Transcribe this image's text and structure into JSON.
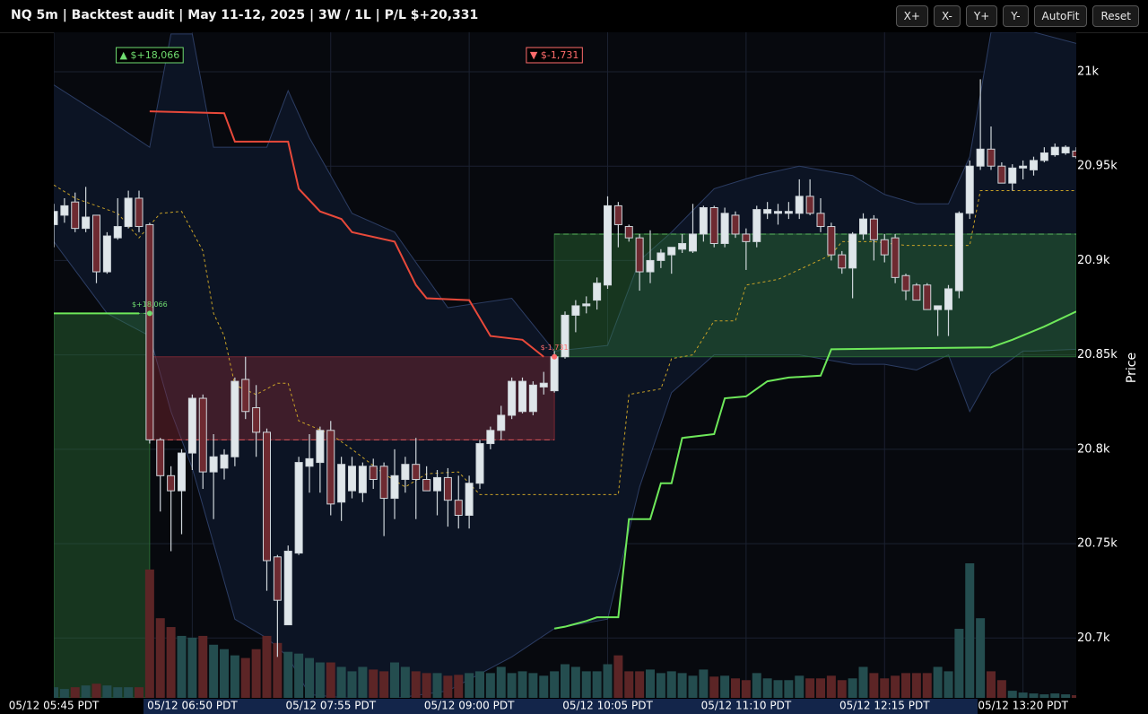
{
  "header": {
    "title": "NQ 5m | Backtest audit | May 11-12, 2025 | 3W / 1L | P/L $+20,331"
  },
  "toolbar": {
    "buttons": [
      "X+",
      "X-",
      "Y+",
      "Y-",
      "AutoFit",
      "Reset"
    ]
  },
  "chart_data": {
    "type": "candlestick",
    "y_axis_label": "Price",
    "xlim": [
      0,
      96
    ],
    "ylim": [
      20668.3,
      21020.9
    ],
    "xticks": [
      {
        "value": 0,
        "label": "05/12 05:45 PDT"
      },
      {
        "value": 13,
        "label": "05/12 06:50 PDT"
      },
      {
        "value": 26,
        "label": "05/12 07:55 PDT"
      },
      {
        "value": 39,
        "label": "05/12 09:00 PDT"
      },
      {
        "value": 52,
        "label": "05/12 10:05 PDT"
      },
      {
        "value": 65,
        "label": "05/12 11:10 PDT"
      },
      {
        "value": 78,
        "label": "05/12 12:15 PDT"
      },
      {
        "value": 91,
        "label": "05/12 13:20 PDT"
      }
    ],
    "yticks": [
      {
        "value": 21000,
        "label": "21k"
      },
      {
        "value": 20950,
        "label": "20.95k"
      },
      {
        "value": 20900,
        "label": "20.9k"
      },
      {
        "value": 20850,
        "label": "20.85k"
      },
      {
        "value": 20800,
        "label": "20.8k"
      },
      {
        "value": 20750,
        "label": "20.75k"
      },
      {
        "value": 20700,
        "label": "20.7k"
      }
    ],
    "grid": true,
    "up_color": "#dfe6ea",
    "down_color": "#6e2a31",
    "volume_up_color": "#244d4f",
    "volume_down_color": "#5c2526",
    "open": [
      20919,
      20924,
      20931,
      20917,
      20924,
      20894,
      20912,
      20918,
      20933,
      20919,
      20805,
      20786,
      20778,
      20798,
      20827,
      20788,
      20790,
      20796,
      20837,
      20822,
      20809,
      20743,
      20707,
      20745,
      20791,
      20793,
      20810,
      20772,
      20778,
      20777,
      20791,
      20791,
      20774,
      20784,
      20792,
      20784,
      20778,
      20785,
      20773,
      20765,
      20782,
      20803,
      20810,
      20818,
      20820,
      20820,
      20833,
      20831,
      20849,
      20871,
      20876,
      20879,
      20887,
      20929,
      20918,
      20912,
      20894,
      20900,
      20903,
      20906,
      20905,
      20914,
      20928,
      20909,
      20924,
      20914,
      20910,
      20925,
      20925,
      20925,
      20925,
      20934,
      20925,
      20918,
      20903,
      20896,
      20914,
      20922,
      20911,
      20912,
      20892,
      20887,
      20887,
      20874,
      20874,
      20884,
      20925,
      20950,
      20959,
      20950,
      20941,
      20949,
      20948,
      20953,
      20956,
      20957,
      20958
    ],
    "high": [
      20930,
      20933,
      20936,
      20939,
      20924,
      20915,
      20933,
      20937,
      20937,
      20920,
      20806,
      20791,
      20800,
      20829,
      20829,
      20808,
      20800,
      20838,
      20849,
      20834,
      20811,
      20744,
      20749,
      20796,
      20808,
      20812,
      20815,
      20796,
      20796,
      20793,
      20795,
      20793,
      20800,
      20796,
      20806,
      20791,
      20789,
      20790,
      20786,
      20786,
      20805,
      20812,
      20823,
      20838,
      20838,
      20836,
      20841,
      20852,
      20873,
      20879,
      20881,
      20891,
      20934,
      20931,
      20919,
      20914,
      20916,
      20906,
      20907,
      20914,
      20930,
      20929,
      20929,
      20928,
      20926,
      20917,
      20929,
      20931,
      20930,
      20931,
      20943,
      20943,
      20933,
      20920,
      20905,
      20915,
      20925,
      20924,
      20914,
      20914,
      20893,
      20888,
      20888,
      20876,
      20887,
      20926,
      20953,
      20996,
      20971,
      20952,
      20951,
      20953,
      20955,
      20960,
      20962,
      20961,
      20960
    ],
    "low": [
      20907,
      20920,
      20915,
      20915,
      20888,
      20893,
      20911,
      20917,
      20915,
      20803,
      20767,
      20746,
      20755,
      20789,
      20779,
      20763,
      20784,
      20791,
      20816,
      20796,
      20725,
      20690,
      20707,
      20744,
      20777,
      20777,
      20765,
      20762,
      20774,
      20772,
      20779,
      20754,
      20763,
      20777,
      20763,
      20778,
      20765,
      20759,
      20758,
      20758,
      20779,
      20800,
      20805,
      20816,
      20819,
      20818,
      20829,
      20830,
      20848,
      20862,
      20872,
      20874,
      20885,
      20907,
      20910,
      20884,
      20888,
      20896,
      20893,
      20904,
      20904,
      20910,
      20907,
      20907,
      20912,
      20895,
      20907,
      20922,
      20919,
      20922,
      20922,
      20924,
      20915,
      20900,
      20893,
      20880,
      20911,
      20900,
      20899,
      20888,
      20879,
      20879,
      20874,
      20860,
      20860,
      20880,
      20922,
      20948,
      20948,
      20941,
      20937,
      20943,
      20945,
      20952,
      20955,
      20956,
      20954
    ],
    "close": [
      20926,
      20929,
      20917,
      20923,
      20894,
      20913,
      20918,
      20933,
      20918,
      20805,
      20786,
      20778,
      20798,
      20827,
      20788,
      20796,
      20797,
      20836,
      20820,
      20809,
      20741,
      20720,
      20746,
      20793,
      20795,
      20810,
      20771,
      20792,
      20791,
      20791,
      20784,
      20774,
      20786,
      20792,
      20784,
      20778,
      20785,
      20773,
      20765,
      20782,
      20803,
      20810,
      20818,
      20836,
      20836,
      20834,
      20835,
      20849,
      20871,
      20876,
      20877,
      20888,
      20929,
      20919,
      20912,
      20894,
      20900,
      20904,
      20907,
      20909,
      20914,
      20928,
      20909,
      20925,
      20914,
      20910,
      20927,
      20927,
      20926,
      20926,
      20934,
      20925,
      20918,
      20903,
      20896,
      20914,
      20922,
      20911,
      20903,
      20891,
      20884,
      20879,
      20874,
      20876,
      20885,
      20925,
      20950,
      20959,
      20950,
      20941,
      20949,
      20950,
      20953,
      20957,
      20960,
      20960,
      20955
    ],
    "volume": [
      12,
      10,
      12,
      14,
      16,
      14,
      12,
      12,
      12,
      145,
      90,
      80,
      70,
      68,
      70,
      60,
      55,
      48,
      45,
      55,
      70,
      62,
      52,
      50,
      45,
      40,
      40,
      35,
      30,
      35,
      32,
      30,
      40,
      35,
      30,
      28,
      28,
      25,
      26,
      28,
      30,
      28,
      35,
      28,
      30,
      28,
      25,
      30,
      38,
      35,
      30,
      30,
      38,
      48,
      30,
      30,
      32,
      28,
      30,
      28,
      25,
      32,
      24,
      25,
      22,
      20,
      28,
      22,
      20,
      20,
      25,
      22,
      22,
      25,
      20,
      22,
      35,
      28,
      22,
      25,
      28,
      28,
      28,
      35,
      30,
      78,
      152,
      90,
      30,
      20,
      8,
      6,
      5,
      4,
      5,
      4,
      3
    ],
    "band": {
      "color": "#2c3d63",
      "fill": "#0c1424",
      "x": [
        0,
        5,
        9,
        11,
        13,
        15,
        17,
        20,
        22,
        24,
        28,
        32,
        37,
        43,
        47,
        52,
        55,
        58,
        62,
        66,
        70,
        75,
        78,
        81,
        84,
        86,
        88,
        91,
        92,
        96
      ],
      "upper": [
        20993,
        20975,
        20960,
        21020,
        21020,
        20960,
        20960,
        20960,
        20990,
        20965,
        20925,
        20915,
        20875,
        20880,
        20852,
        20855,
        20900,
        20915,
        20938,
        20945,
        20950,
        20945,
        20935,
        20930,
        20930,
        20955,
        21021,
        21021,
        21021,
        21015
      ],
      "lower": [
        20910,
        20872,
        20860,
        20820,
        20790,
        20750,
        20710,
        20700,
        20690,
        20670,
        20668,
        20668,
        20672,
        20690,
        20705,
        20710,
        20780,
        20830,
        20850,
        20850,
        20850,
        20845,
        20845,
        20842,
        20850,
        20820,
        20840,
        20852,
        20852,
        20853
      ]
    },
    "lines": [
      {
        "color": "#e8493a",
        "dash": false,
        "x": [
          9,
          16,
          17,
          22,
          23,
          25,
          27,
          28,
          32,
          34,
          35,
          39,
          41,
          44,
          46
        ],
        "values": [
          20979,
          20978,
          20963,
          20963,
          20938,
          20926,
          20922,
          20915,
          20910,
          20887,
          20880,
          20879,
          20860,
          20858,
          20849
        ]
      },
      {
        "color": "#6ee85a",
        "dash": false,
        "x": [
          0,
          8,
          null,
          47,
          48,
          50,
          51,
          53,
          54,
          56,
          57,
          58,
          59,
          62,
          63,
          65,
          67,
          69,
          72,
          73,
          88,
          90,
          93,
          96
        ],
        "values": [
          20872,
          20872,
          null,
          20705,
          20706,
          20709,
          20711,
          20711,
          20763,
          20763,
          20782,
          20782,
          20806,
          20808,
          20827,
          20828,
          20836,
          20838,
          20839,
          20853,
          20854,
          20858,
          20865,
          20873
        ]
      },
      {
        "color": "#c9a227",
        "dash": true,
        "x": [
          0,
          2,
          4,
          6,
          8,
          10,
          12,
          14,
          15,
          16,
          17,
          19,
          21,
          22,
          23,
          26,
          28,
          31,
          33,
          35,
          38,
          40,
          48,
          53,
          54,
          57,
          58,
          60,
          62,
          64,
          65,
          68,
          73,
          74,
          77,
          80,
          86,
          87,
          96
        ],
        "values": [
          20940,
          20933,
          20929,
          20925,
          20912,
          20925,
          20926,
          20905,
          20872,
          20860,
          20834,
          20829,
          20835,
          20835,
          20815,
          20808,
          20800,
          20787,
          20780,
          20787,
          20788,
          20776,
          20776,
          20776,
          20829,
          20832,
          20848,
          20850,
          20868,
          20868,
          20887,
          20890,
          20903,
          20910,
          20910,
          20908,
          20908,
          20937,
          20937
        ]
      }
    ],
    "zones": [
      {
        "x": [
          0,
          9
        ],
        "y": [
          20668.3,
          20872
        ],
        "color": "#2f7a3a",
        "label": "▲ $+18,066",
        "marker_label": "$+18,066"
      },
      {
        "x": [
          9,
          47
        ],
        "y": [
          20805,
          20849
        ],
        "color": "#8a2a35",
        "label": "▼ $-1,731",
        "marker_label": "$-1,731"
      },
      {
        "x": [
          47,
          96
        ],
        "y": [
          20849,
          20914
        ],
        "color": "#2f7a3a"
      }
    ]
  }
}
